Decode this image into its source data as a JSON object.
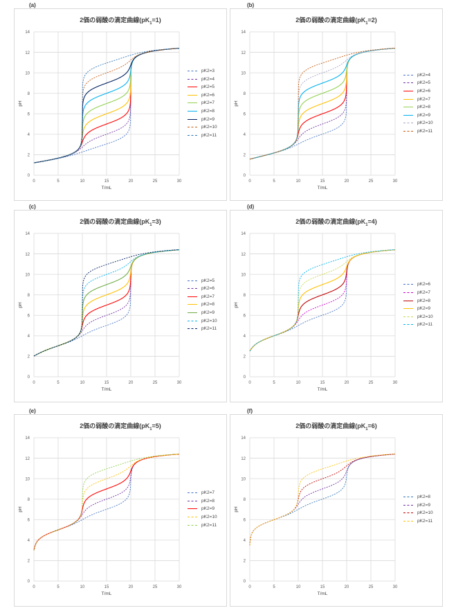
{
  "chart_data": [
    {
      "label": "(a)",
      "type": "line",
      "title": "2価の弱酸の滴定曲線(pK",
      "title_sub": "1",
      "title_tail": "=1)",
      "pk1": 1,
      "xlabel": "T/mL",
      "ylabel": "pH",
      "xlim": [
        0,
        30
      ],
      "ylim": [
        0,
        14
      ],
      "xticks": [
        "0",
        "5",
        "10",
        "15",
        "20",
        "25",
        "30"
      ],
      "yticks": [
        "0",
        "2",
        "4",
        "6",
        "8",
        "10",
        "12",
        "14"
      ],
      "series": [
        {
          "name": "pK2=3",
          "pk2": 3,
          "color": "#4472c4",
          "dash": true
        },
        {
          "name": "pK2=4",
          "pk2": 4,
          "color": "#7030a0",
          "dash": true
        },
        {
          "name": "pK2=5",
          "pk2": 5,
          "color": "#ff0000",
          "dash": false
        },
        {
          "name": "pK2=6",
          "pk2": 6,
          "color": "#ffc000",
          "dash": false
        },
        {
          "name": "pK2=7",
          "pk2": 7,
          "color": "#92d050",
          "dash": false
        },
        {
          "name": "pK2=8",
          "pk2": 8,
          "color": "#00b0f0",
          "dash": false
        },
        {
          "name": "pK2=9",
          "pk2": 9,
          "color": "#002060",
          "dash": false
        },
        {
          "name": "pK2=10",
          "pk2": 10,
          "color": "#c55a11",
          "dash": true
        },
        {
          "name": "pK2=11",
          "pk2": 11,
          "color": "#2e75b6",
          "dash": true
        }
      ]
    },
    {
      "label": "(b)",
      "type": "line",
      "title": "2価の弱酸の滴定曲線(pK",
      "title_sub": "1",
      "title_tail": "=2)",
      "pk1": 2,
      "xlabel": "T/mL",
      "ylabel": "pH",
      "xlim": [
        0,
        30
      ],
      "ylim": [
        0,
        14
      ],
      "xticks": [
        "0",
        "5",
        "10",
        "15",
        "20",
        "25",
        "30"
      ],
      "yticks": [
        "0",
        "2",
        "4",
        "6",
        "8",
        "10",
        "12",
        "14"
      ],
      "series": [
        {
          "name": "pK2=4",
          "pk2": 4,
          "color": "#4472c4",
          "dash": true
        },
        {
          "name": "pK2=5",
          "pk2": 5,
          "color": "#7030a0",
          "dash": true
        },
        {
          "name": "pK2=6",
          "pk2": 6,
          "color": "#ff0000",
          "dash": false
        },
        {
          "name": "pK2=7",
          "pk2": 7,
          "color": "#ffc000",
          "dash": false
        },
        {
          "name": "pK2=8",
          "pk2": 8,
          "color": "#92d050",
          "dash": false
        },
        {
          "name": "pK2=9",
          "pk2": 9,
          "color": "#00b0f0",
          "dash": false
        },
        {
          "name": "pK2=10",
          "pk2": 10,
          "color": "#a6a6c8",
          "dash": true
        },
        {
          "name": "pK2=11",
          "pk2": 11,
          "color": "#c55a11",
          "dash": true
        }
      ]
    },
    {
      "label": "(c)",
      "type": "line",
      "title": "2価の弱酸の滴定曲線(pK",
      "title_sub": "1",
      "title_tail": "=3)",
      "pk1": 3,
      "xlabel": "T/mL",
      "ylabel": "pH",
      "xlim": [
        0,
        30
      ],
      "ylim": [
        0,
        14
      ],
      "xticks": [
        "0",
        "5",
        "10",
        "15",
        "20",
        "25",
        "30"
      ],
      "yticks": [
        "0",
        "2",
        "4",
        "6",
        "8",
        "10",
        "12",
        "14"
      ],
      "series": [
        {
          "name": "pK2=5",
          "pk2": 5,
          "color": "#4472c4",
          "dash": true
        },
        {
          "name": "pK2=6",
          "pk2": 6,
          "color": "#7030a0",
          "dash": true
        },
        {
          "name": "pK2=7",
          "pk2": 7,
          "color": "#ff0000",
          "dash": false
        },
        {
          "name": "pK2=8",
          "pk2": 8,
          "color": "#ffc000",
          "dash": false
        },
        {
          "name": "pK2=9",
          "pk2": 9,
          "color": "#70ad47",
          "dash": false
        },
        {
          "name": "pK2=10",
          "pk2": 10,
          "color": "#00b0f0",
          "dash": true
        },
        {
          "name": "pK2=11",
          "pk2": 11,
          "color": "#002060",
          "dash": true
        }
      ]
    },
    {
      "label": "(d)",
      "type": "line",
      "title": "2価の弱酸の滴定曲線(pK",
      "title_sub": "1",
      "title_tail": "=4)",
      "pk1": 4,
      "xlabel": "T/mL",
      "ylabel": "pH",
      "xlim": [
        0,
        30
      ],
      "ylim": [
        0,
        14
      ],
      "xticks": [
        "0",
        "5",
        "10",
        "15",
        "20",
        "25",
        "30"
      ],
      "yticks": [
        "0",
        "2",
        "4",
        "6",
        "8",
        "10",
        "12",
        "14"
      ],
      "series": [
        {
          "name": "pK2=6",
          "pk2": 6,
          "color": "#4472c4",
          "dash": true
        },
        {
          "name": "pK2=7",
          "pk2": 7,
          "color": "#cc00cc",
          "dash": true
        },
        {
          "name": "pK2=8",
          "pk2": 8,
          "color": "#c00000",
          "dash": false
        },
        {
          "name": "pK2=9",
          "pk2": 9,
          "color": "#ffc000",
          "dash": false
        },
        {
          "name": "pK2=10",
          "pk2": 10,
          "color": "#c9d84a",
          "dash": true
        },
        {
          "name": "pK2=11",
          "pk2": 11,
          "color": "#00b0f0",
          "dash": true
        }
      ]
    },
    {
      "label": "(e)",
      "type": "line",
      "title": "2価の弱酸の滴定曲線(pK",
      "title_sub": "1",
      "title_tail": "=5)",
      "pk1": 5,
      "xlabel": "T/mL",
      "ylabel": "pH",
      "xlim": [
        0,
        30
      ],
      "ylim": [
        0,
        14
      ],
      "xticks": [
        "0",
        "5",
        "10",
        "15",
        "20",
        "25",
        "30"
      ],
      "yticks": [
        "0",
        "2",
        "4",
        "6",
        "8",
        "10",
        "12",
        "14"
      ],
      "series": [
        {
          "name": "pK2=7",
          "pk2": 7,
          "color": "#4472c4",
          "dash": true
        },
        {
          "name": "pK2=8",
          "pk2": 8,
          "color": "#7030a0",
          "dash": true
        },
        {
          "name": "pK2=9",
          "pk2": 9,
          "color": "#ff0000",
          "dash": false
        },
        {
          "name": "pK2=10",
          "pk2": 10,
          "color": "#ffc000",
          "dash": true
        },
        {
          "name": "pK2=11",
          "pk2": 11,
          "color": "#92d050",
          "dash": true
        }
      ]
    },
    {
      "label": "(f)",
      "type": "line",
      "title": "2価の弱酸の滴定曲線(pK",
      "title_sub": "1",
      "title_tail": "=6)",
      "pk1": 6,
      "xlabel": "T/mL",
      "ylabel": "pH",
      "xlim": [
        0,
        30
      ],
      "ylim": [
        0,
        14
      ],
      "xticks": [
        "0",
        "5",
        "10",
        "15",
        "20",
        "25",
        "30"
      ],
      "yticks": [
        "0",
        "2",
        "4",
        "6",
        "8",
        "10",
        "12",
        "14"
      ],
      "series": [
        {
          "name": "pK2=8",
          "pk2": 8,
          "color": "#2e75b6",
          "dash": true
        },
        {
          "name": "pK2=9",
          "pk2": 9,
          "color": "#7030a0",
          "dash": true
        },
        {
          "name": "pK2=10",
          "pk2": 10,
          "color": "#c00000",
          "dash": true
        },
        {
          "name": "pK2=11",
          "pk2": 11,
          "color": "#ffc000",
          "dash": true
        }
      ]
    }
  ]
}
